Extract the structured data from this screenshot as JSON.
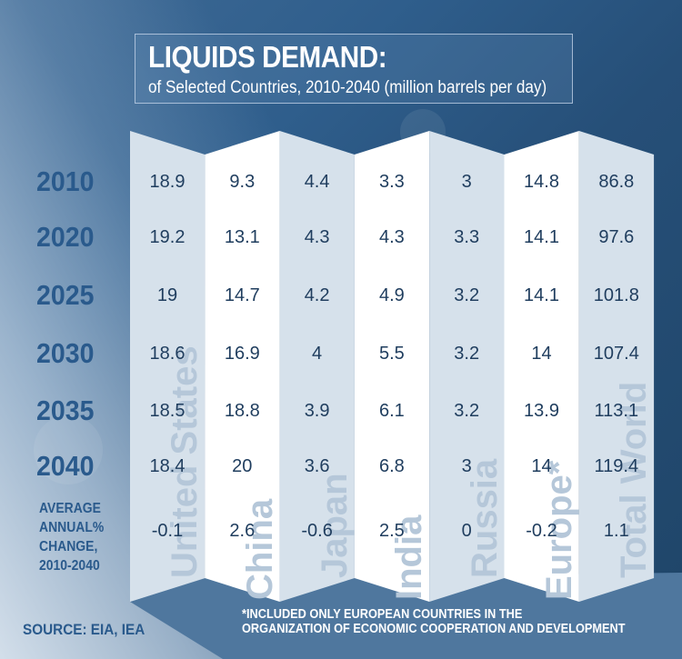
{
  "title": {
    "main": "LIQUIDS DEMAND:",
    "subtitle": "of Selected Countries,  2010-2040 (million barrels per day)"
  },
  "colors": {
    "year_label": "#2a5a8c",
    "value_text": "#1f3d5e",
    "panel_light": "#d6e1eb",
    "panel_white": "#ffffff",
    "country_label": "#b5c7d9",
    "band": "#4f779e"
  },
  "chart_data": {
    "type": "table",
    "title": "LIQUIDS DEMAND: of Selected Countries, 2010-2040 (million barrels per day)",
    "columns": [
      "United States",
      "China",
      "Japan",
      "India",
      "Russia",
      "Europe*",
      "Total World"
    ],
    "rows": [
      {
        "label": "2010",
        "values": [
          "18.9",
          "9.3",
          "4.4",
          "3.3",
          "3",
          "14.8",
          "86.8"
        ]
      },
      {
        "label": "2020",
        "values": [
          "19.2",
          "13.1",
          "4.3",
          "4.3",
          "3.3",
          "14.1",
          "97.6"
        ]
      },
      {
        "label": "2025",
        "values": [
          "19",
          "14.7",
          "4.2",
          "4.9",
          "3.2",
          "14.1",
          "101.8"
        ]
      },
      {
        "label": "2030",
        "values": [
          "18.6",
          "16.9",
          "4",
          "5.5",
          "3.2",
          "14",
          "107.4"
        ]
      },
      {
        "label": "2035",
        "values": [
          "18.5",
          "18.8",
          "3.9",
          "6.1",
          "3.2",
          "13.9",
          "113.1"
        ]
      },
      {
        "label": "2040",
        "values": [
          "18.4",
          "20",
          "3.6",
          "6.8",
          "3",
          "14",
          "119.4"
        ]
      }
    ],
    "average_row": {
      "label_lines": [
        "AVERAGE",
        "ANNUAL%",
        "CHANGE,",
        "2010-2040"
      ],
      "values": [
        "-0.1",
        "2.6",
        "-0.6",
        "2.5",
        "0",
        "-0.2",
        "1.1"
      ]
    },
    "units": "million barrels per day"
  },
  "source": "SOURCE: EIA, IEA",
  "footnote": {
    "line1": "*INCLUDED ONLY EUROPEAN COUNTRIES IN THE",
    "line2": "ORGANIZATION OF ECONOMIC COOPERATION AND DEVELOPMENT"
  }
}
